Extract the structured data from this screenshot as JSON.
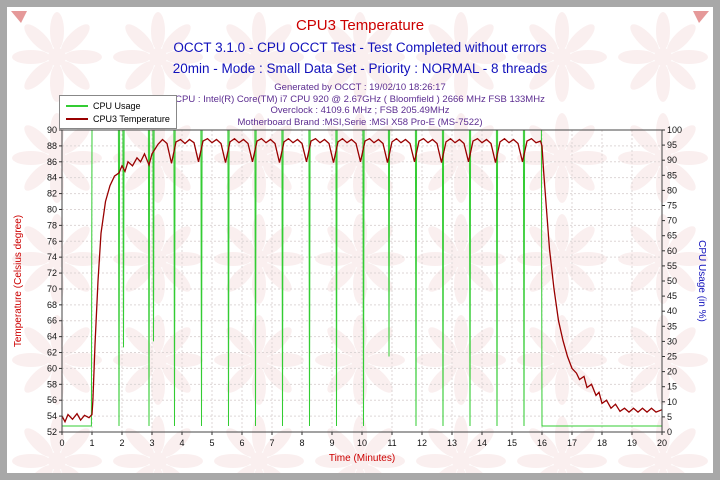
{
  "header": {
    "title": "CPU3 Temperature",
    "subtitle1": "OCCT 3.1.0 - CPU OCCT Test - Test Completed without errors",
    "subtitle2": "20min - Mode : Small Data Set - Priority : NORMAL - 8 threads",
    "info_lines": [
      "Generated by OCCT : 19/02/10 18:26:17",
      "CPU : Intel(R) Core(TM) i7 CPU 920 @ 2.67GHz ( Bloomfield ) 2666 MHz FSB 133MHz",
      "Overclock : 4109.6 MHz ; FSB 205.49MHz",
      "Motherboard Brand :MSI,Serie :MSI X58 Pro-E (MS-7522)"
    ]
  },
  "legend": {
    "items": [
      {
        "label": "CPU Usage",
        "color": "#33cc33"
      },
      {
        "label": "CPU3 Temperature",
        "color": "#990000"
      }
    ]
  },
  "colors": {
    "title_red": "#cc0000",
    "subtitle_blue": "#1111bb",
    "info_purple": "#5c2d91",
    "frame_gray": "#a8a8a8",
    "grid_gray": "#ddd6d6",
    "watermark_red": "#c03030",
    "tick_text": "#111111"
  },
  "chart_data": {
    "type": "line",
    "title": "CPU3 Temperature",
    "grid": true,
    "legend_position": "top-left",
    "watermark": "OCCT logo pattern",
    "x_axis": {
      "label": "Time (Minutes)",
      "min": 0,
      "max": 20,
      "ticks": [
        0,
        1,
        2,
        3,
        4,
        5,
        6,
        7,
        8,
        9,
        10,
        11,
        12,
        13,
        14,
        15,
        16,
        17,
        18,
        19,
        20
      ]
    },
    "y_left": {
      "label": "Temperature (Celsius degree)",
      "min": 52,
      "max": 90,
      "ticks": [
        90,
        88,
        86,
        84,
        82,
        80,
        78,
        76,
        74,
        72,
        70,
        68,
        66,
        64,
        62,
        60,
        58,
        56,
        54,
        52
      ]
    },
    "y_right": {
      "label": "CPU Usage (in %)",
      "min": 0,
      "max": 100,
      "ticks": [
        100,
        95,
        90,
        85,
        80,
        75,
        70,
        65,
        60,
        55,
        50,
        45,
        40,
        35,
        30,
        25,
        20,
        15,
        10,
        5,
        0
      ]
    },
    "series": [
      {
        "name": "CPU Usage",
        "axis": "right",
        "color": "#33cc33",
        "width": 1,
        "points": [
          [
            0,
            2
          ],
          [
            0.98,
            2
          ],
          [
            1,
            100
          ],
          [
            1.88,
            100
          ],
          [
            1.9,
            2
          ],
          [
            1.92,
            100
          ],
          [
            2.03,
            100
          ],
          [
            2.05,
            28
          ],
          [
            2.07,
            100
          ],
          [
            2.88,
            100
          ],
          [
            2.9,
            2
          ],
          [
            2.92,
            100
          ],
          [
            3.03,
            100
          ],
          [
            3.05,
            30
          ],
          [
            3.07,
            100
          ],
          [
            3.73,
            100
          ],
          [
            3.75,
            2
          ],
          [
            3.77,
            100
          ],
          [
            4.63,
            100
          ],
          [
            4.65,
            2
          ],
          [
            4.67,
            100
          ],
          [
            5.53,
            100
          ],
          [
            5.55,
            2
          ],
          [
            5.57,
            100
          ],
          [
            6.43,
            100
          ],
          [
            6.45,
            2
          ],
          [
            6.47,
            100
          ],
          [
            7.33,
            100
          ],
          [
            7.35,
            2
          ],
          [
            7.37,
            100
          ],
          [
            8.23,
            100
          ],
          [
            8.25,
            2
          ],
          [
            8.27,
            100
          ],
          [
            9.13,
            100
          ],
          [
            9.15,
            2
          ],
          [
            9.17,
            100
          ],
          [
            10.03,
            100
          ],
          [
            10.05,
            2
          ],
          [
            10.07,
            100
          ],
          [
            10.88,
            100
          ],
          [
            10.9,
            25
          ],
          [
            10.92,
            100
          ],
          [
            11.78,
            100
          ],
          [
            11.8,
            2
          ],
          [
            11.82,
            100
          ],
          [
            12.68,
            100
          ],
          [
            12.7,
            2
          ],
          [
            12.72,
            100
          ],
          [
            13.58,
            100
          ],
          [
            13.6,
            2
          ],
          [
            13.62,
            100
          ],
          [
            14.48,
            100
          ],
          [
            14.5,
            2
          ],
          [
            14.52,
            100
          ],
          [
            15.38,
            100
          ],
          [
            15.4,
            2
          ],
          [
            15.42,
            100
          ],
          [
            15.98,
            100
          ],
          [
            16,
            2
          ],
          [
            20,
            2
          ]
        ]
      },
      {
        "name": "CPU3 Temperature",
        "axis": "left",
        "color": "#990000",
        "width": 1.3,
        "points": [
          [
            0,
            54
          ],
          [
            0.1,
            53.3
          ],
          [
            0.2,
            54.2
          ],
          [
            0.35,
            53.6
          ],
          [
            0.5,
            54.3
          ],
          [
            0.62,
            53.5
          ],
          [
            0.75,
            54.1
          ],
          [
            0.9,
            53.8
          ],
          [
            1,
            54.2
          ],
          [
            1.03,
            56
          ],
          [
            1.1,
            63
          ],
          [
            1.2,
            71
          ],
          [
            1.3,
            77
          ],
          [
            1.45,
            81
          ],
          [
            1.6,
            83
          ],
          [
            1.75,
            84.2
          ],
          [
            1.9,
            84.6
          ],
          [
            2,
            85.5
          ],
          [
            2.1,
            84.8
          ],
          [
            2.2,
            86
          ],
          [
            2.35,
            85.5
          ],
          [
            2.5,
            86.5
          ],
          [
            2.62,
            86
          ],
          [
            2.75,
            87
          ],
          [
            2.9,
            85.6
          ],
          [
            3,
            87
          ],
          [
            3.1,
            87.6
          ],
          [
            3.2,
            88.2
          ],
          [
            3.35,
            88.8
          ],
          [
            3.5,
            88.3
          ],
          [
            3.65,
            85.8
          ],
          [
            3.8,
            88.5
          ],
          [
            3.95,
            88.8
          ],
          [
            4.1,
            88.3
          ],
          [
            4.25,
            88.8
          ],
          [
            4.4,
            88.4
          ],
          [
            4.55,
            86
          ],
          [
            4.7,
            88.6
          ],
          [
            4.85,
            88.9
          ],
          [
            5,
            88.4
          ],
          [
            5.15,
            88.8
          ],
          [
            5.3,
            88.3
          ],
          [
            5.45,
            85.9
          ],
          [
            5.6,
            88.5
          ],
          [
            5.75,
            88.9
          ],
          [
            5.9,
            88.4
          ],
          [
            6.05,
            88.8
          ],
          [
            6.2,
            88.3
          ],
          [
            6.35,
            86
          ],
          [
            6.5,
            88.6
          ],
          [
            6.65,
            88.9
          ],
          [
            6.8,
            88.4
          ],
          [
            6.95,
            88.8
          ],
          [
            7.1,
            88.3
          ],
          [
            7.25,
            85.9
          ],
          [
            7.4,
            88.5
          ],
          [
            7.55,
            88.9
          ],
          [
            7.7,
            88.4
          ],
          [
            7.85,
            88.8
          ],
          [
            8,
            88.3
          ],
          [
            8.15,
            86
          ],
          [
            8.3,
            88.6
          ],
          [
            8.45,
            88.9
          ],
          [
            8.6,
            88.4
          ],
          [
            8.75,
            88.8
          ],
          [
            8.9,
            88.3
          ],
          [
            9.05,
            85.9
          ],
          [
            9.2,
            88.5
          ],
          [
            9.35,
            88.9
          ],
          [
            9.5,
            88.4
          ],
          [
            9.65,
            88.8
          ],
          [
            9.8,
            88.3
          ],
          [
            9.95,
            86
          ],
          [
            10.1,
            88.6
          ],
          [
            10.25,
            88.9
          ],
          [
            10.4,
            88.4
          ],
          [
            10.55,
            88.8
          ],
          [
            10.7,
            88.3
          ],
          [
            10.85,
            85.9
          ],
          [
            11,
            88.5
          ],
          [
            11.15,
            88.9
          ],
          [
            11.3,
            88.4
          ],
          [
            11.45,
            88.8
          ],
          [
            11.6,
            88.3
          ],
          [
            11.75,
            86
          ],
          [
            11.9,
            88.6
          ],
          [
            12.05,
            88.9
          ],
          [
            12.2,
            88.4
          ],
          [
            12.35,
            88.8
          ],
          [
            12.5,
            88.3
          ],
          [
            12.65,
            85.9
          ],
          [
            12.8,
            88.5
          ],
          [
            12.95,
            88.9
          ],
          [
            13.1,
            88.4
          ],
          [
            13.25,
            88.8
          ],
          [
            13.4,
            88.3
          ],
          [
            13.55,
            86
          ],
          [
            13.7,
            88.6
          ],
          [
            13.85,
            88.9
          ],
          [
            14,
            88.4
          ],
          [
            14.15,
            88.8
          ],
          [
            14.3,
            88.3
          ],
          [
            14.45,
            85.9
          ],
          [
            14.6,
            88.5
          ],
          [
            14.75,
            88.9
          ],
          [
            14.9,
            88.4
          ],
          [
            15.05,
            88.8
          ],
          [
            15.2,
            88.3
          ],
          [
            15.35,
            86
          ],
          [
            15.5,
            88.6
          ],
          [
            15.65,
            88.9
          ],
          [
            15.8,
            88.4
          ],
          [
            15.95,
            88.6
          ],
          [
            16,
            88
          ],
          [
            16.05,
            85
          ],
          [
            16.15,
            80
          ],
          [
            16.25,
            75
          ],
          [
            16.4,
            70
          ],
          [
            16.55,
            66
          ],
          [
            16.7,
            63.5
          ],
          [
            16.85,
            61.5
          ],
          [
            17,
            60
          ],
          [
            17.15,
            59.4
          ],
          [
            17.25,
            58.6
          ],
          [
            17.4,
            59
          ],
          [
            17.5,
            57.6
          ],
          [
            17.65,
            58
          ],
          [
            17.8,
            56.6
          ],
          [
            17.9,
            57
          ],
          [
            18,
            55.6
          ],
          [
            18.15,
            56
          ],
          [
            18.3,
            55
          ],
          [
            18.45,
            55.5
          ],
          [
            18.6,
            54.6
          ],
          [
            18.75,
            55
          ],
          [
            18.9,
            54.5
          ],
          [
            19.05,
            55
          ],
          [
            19.2,
            54.5
          ],
          [
            19.35,
            55
          ],
          [
            19.5,
            54.5
          ],
          [
            19.65,
            55
          ],
          [
            19.8,
            54.5
          ],
          [
            20,
            54.8
          ]
        ]
      }
    ]
  }
}
